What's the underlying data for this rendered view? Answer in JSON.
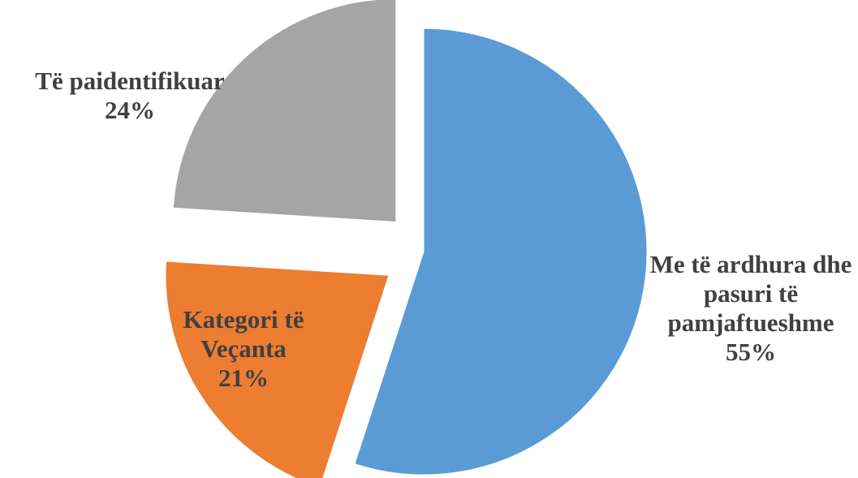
{
  "chart_data": {
    "type": "pie",
    "categories": [
      "Me të ardhura dhe pasuri të pamjaftueshme",
      "Kategori të Veçanta",
      "Të paidentifikuar"
    ],
    "values": [
      55,
      21,
      24
    ],
    "value_labels": [
      "55%",
      "21%",
      "24%"
    ],
    "colors": [
      "#5b9bd5",
      "#ed7d31",
      "#a5a5a5"
    ]
  }
}
